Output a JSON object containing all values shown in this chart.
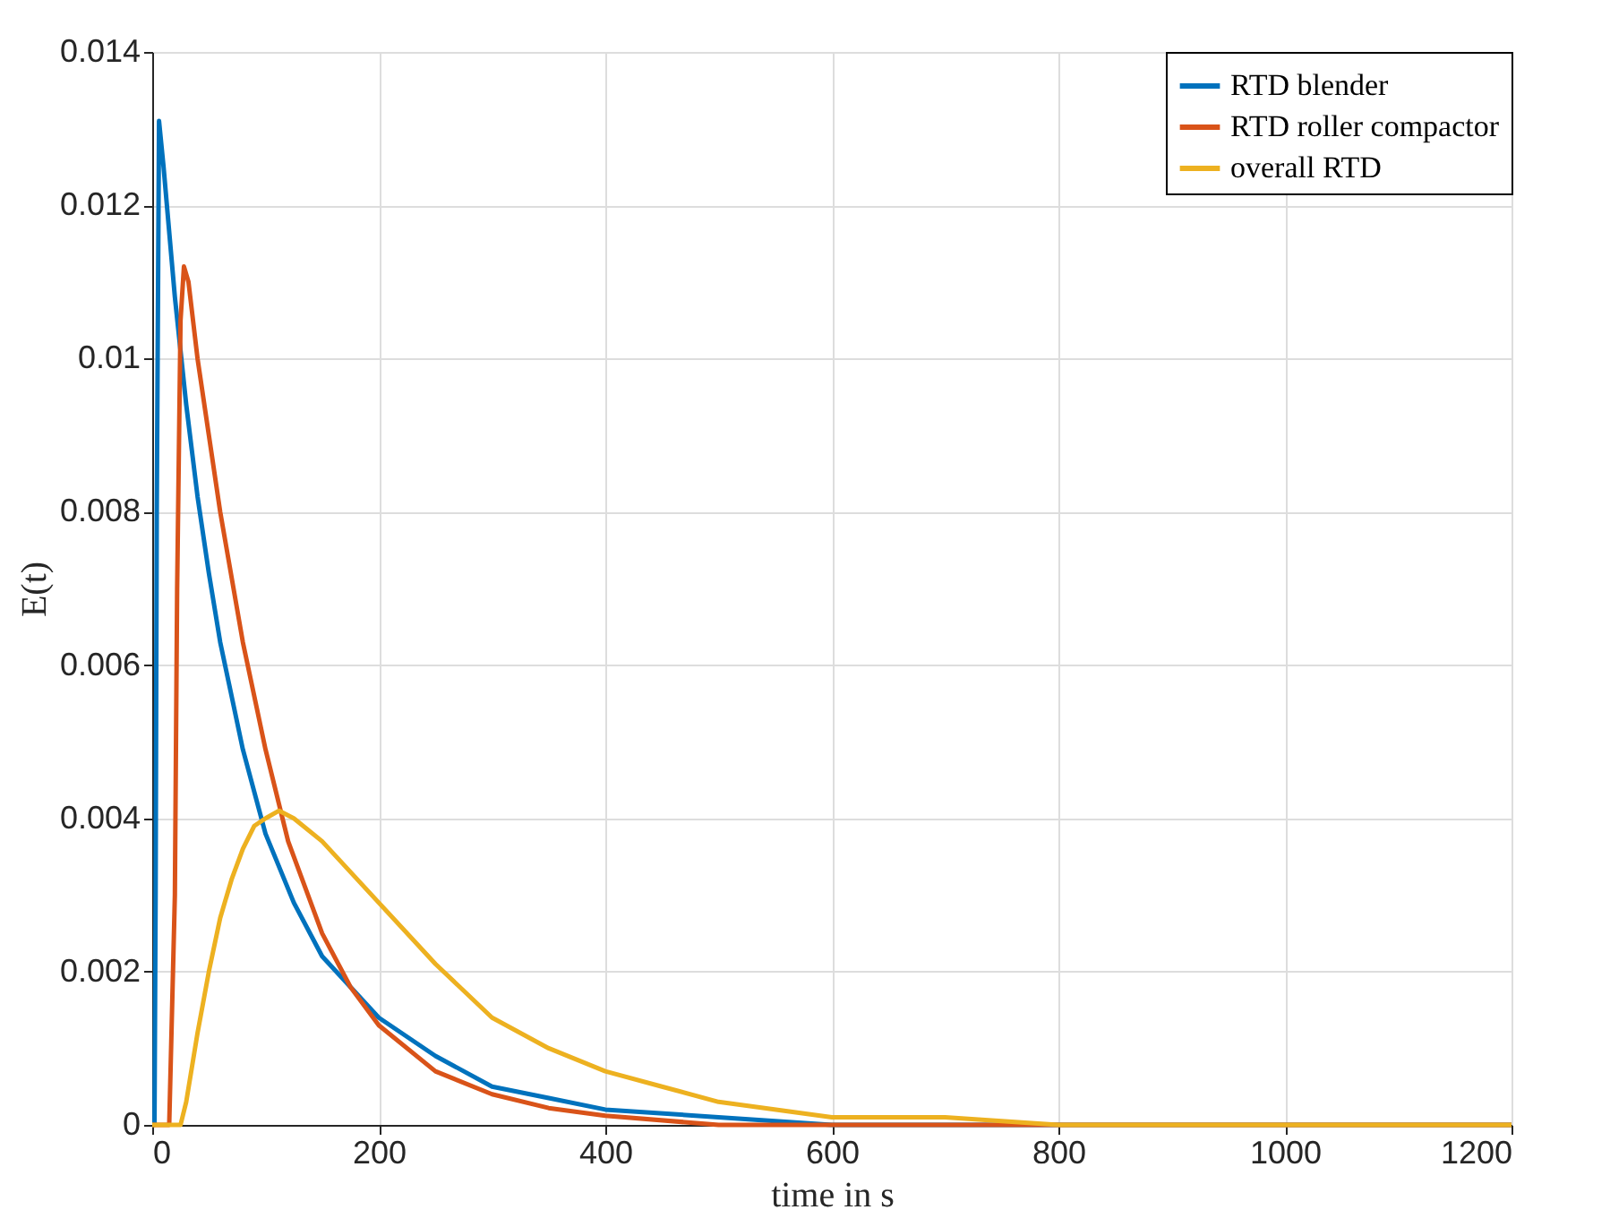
{
  "chart_data": {
    "type": "line",
    "xlabel": "time in s",
    "ylabel": "E(t)",
    "xlim": [
      0,
      1200
    ],
    "xticks": [
      0,
      200,
      400,
      600,
      800,
      1000,
      1200
    ],
    "ylim": [
      0,
      0.014
    ],
    "yticks": [
      0,
      0.002,
      0.004,
      0.006,
      0.008,
      0.01,
      0.012,
      0.014
    ],
    "grid": true,
    "legend": "top right",
    "marker": "none",
    "line_style": "solid",
    "series": [
      {
        "name": "RTD blender",
        "color": "#0072bd",
        "x": [
          0,
          2,
          3,
          4,
          6,
          10,
          20,
          30,
          40,
          50,
          60,
          80,
          100,
          125,
          150,
          175,
          200,
          250,
          300,
          350,
          400,
          500,
          600,
          800,
          1200
        ],
        "values": [
          0,
          0,
          0.003,
          0.008,
          0.0131,
          0.0125,
          0.0108,
          0.0094,
          0.0082,
          0.0072,
          0.0063,
          0.0049,
          0.0038,
          0.0029,
          0.0022,
          0.0018,
          0.0014,
          0.0009,
          0.0005,
          0.00035,
          0.0002,
          0.0001,
          0,
          0,
          0
        ]
      },
      {
        "name": "RTD roller compactor",
        "color": "#d95319",
        "x": [
          0,
          15,
          20,
          22,
          25,
          28,
          32,
          40,
          50,
          60,
          80,
          100,
          120,
          150,
          175,
          200,
          250,
          300,
          350,
          400,
          500,
          600,
          870,
          1200
        ],
        "values": [
          0,
          0,
          0.003,
          0.007,
          0.0105,
          0.0112,
          0.011,
          0.01,
          0.009,
          0.008,
          0.0063,
          0.0049,
          0.0037,
          0.0025,
          0.0018,
          0.0013,
          0.0007,
          0.0004,
          0.00022,
          0.00012,
          0,
          0,
          0,
          0
        ]
      },
      {
        "name": "overall RTD",
        "color": "#edb120",
        "x": [
          0,
          25,
          30,
          40,
          50,
          60,
          70,
          80,
          90,
          100,
          112,
          125,
          150,
          175,
          200,
          250,
          300,
          350,
          400,
          450,
          500,
          600,
          700,
          800,
          1000,
          1200
        ],
        "values": [
          0,
          0,
          0.0003,
          0.0012,
          0.002,
          0.0027,
          0.0032,
          0.0036,
          0.0039,
          0.004,
          0.0041,
          0.004,
          0.0037,
          0.0033,
          0.0029,
          0.0021,
          0.0014,
          0.001,
          0.0007,
          0.0005,
          0.0003,
          0.0001,
          0.0001,
          0,
          0,
          0
        ]
      }
    ]
  }
}
